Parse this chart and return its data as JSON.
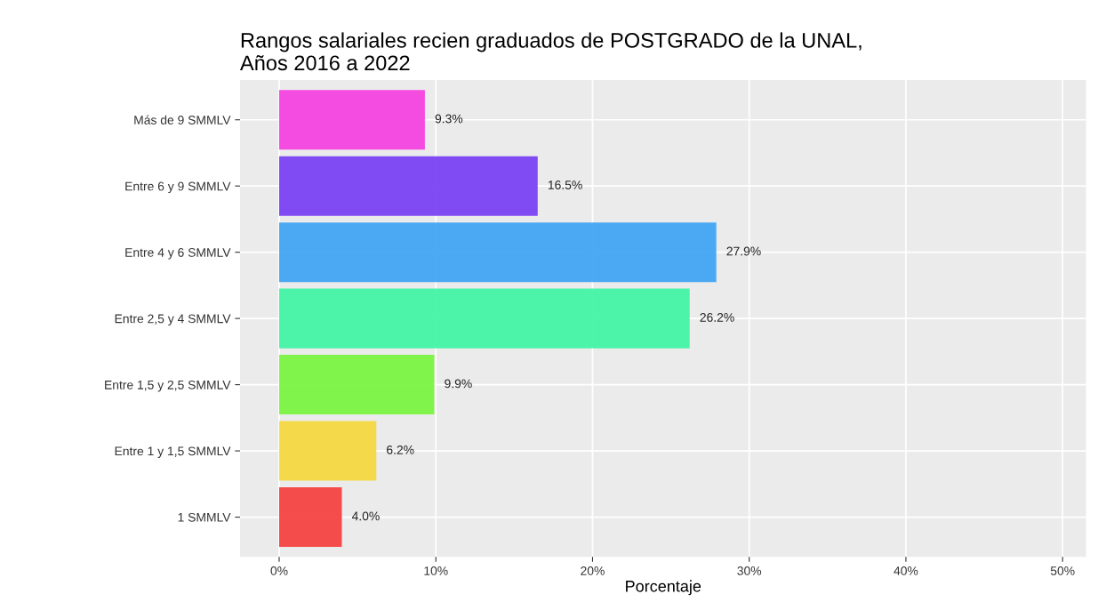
{
  "chart_data": {
    "type": "bar",
    "orientation": "horizontal",
    "title": "Rangos salariales recien graduados de POSTGRADO de la UNAL,\nAños 2016 a 2022",
    "xlabel": "Porcentaje",
    "categories": [
      "Más de 9 SMMLV",
      "Entre 6 y 9 SMMLV",
      "Entre 4 y 6 SMMLV",
      "Entre 2,5 y 4 SMMLV",
      "Entre 1,5 y 2,5 SMMLV",
      "Entre 1 y 1,5 SMMLV",
      "1 SMMLV"
    ],
    "values": [
      9.3,
      16.5,
      27.9,
      26.2,
      9.9,
      6.2,
      4.0
    ],
    "colors": [
      "#f442e0",
      "#7b42f4",
      "#42a5f4",
      "#42f4a5",
      "#7bf442",
      "#f4d942",
      "#f44242"
    ],
    "value_labels": [
      "9.3%",
      "16.5%",
      "27.9%",
      "26.2%",
      "9.9%",
      "6.2%",
      "4.0%"
    ],
    "xlim": [
      -2.5,
      51.5
    ],
    "xticks": [
      {
        "value": 0,
        "label": "0%"
      },
      {
        "value": 10,
        "label": "10%"
      },
      {
        "value": 20,
        "label": "20%"
      },
      {
        "value": 30,
        "label": "30%"
      },
      {
        "value": 40,
        "label": "40%"
      },
      {
        "value": 50,
        "label": "50%"
      }
    ],
    "grid": true,
    "legend": false
  }
}
